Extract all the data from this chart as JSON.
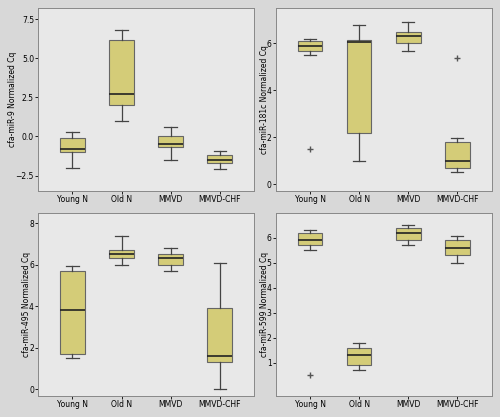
{
  "categories": [
    "Young N",
    "Old N",
    "MMVD",
    "MMVD-CHF"
  ],
  "fig_background": "#d8d8d8",
  "plot_background": "#e8e8e8",
  "box_color": "#d4cc78",
  "box_edge_color": "#666666",
  "median_color": "#222222",
  "whisker_color": "#444444",
  "flier_color": "#555555",
  "plots": [
    {
      "ylabel": "cfa-miR-9 Normalized Cq",
      "ylim": [
        -3.5,
        8.2
      ],
      "yticks": [
        -2.5,
        0.0,
        2.5,
        5.0,
        7.5
      ],
      "groups": {
        "Young N": {
          "q1": -1.0,
          "median": -0.8,
          "q3": -0.1,
          "whislo": -2.0,
          "whishi": 0.3,
          "fliers": []
        },
        "Old N": {
          "q1": 2.0,
          "median": 2.7,
          "q3": 6.2,
          "whislo": 1.0,
          "whishi": 6.8,
          "fliers": []
        },
        "MMVD": {
          "q1": -0.7,
          "median": -0.5,
          "q3": 0.0,
          "whislo": -1.5,
          "whishi": 0.6,
          "fliers": []
        },
        "MMVD-CHF": {
          "q1": -1.7,
          "median": -1.5,
          "q3": -1.2,
          "whislo": -2.1,
          "whishi": -0.9,
          "fliers": []
        }
      }
    },
    {
      "ylabel": "cfa-miR-181c Normalized Cq",
      "ylim": [
        -0.3,
        7.5
      ],
      "yticks": [
        0.0,
        2.0,
        4.0,
        6.0
      ],
      "groups": {
        "Young N": {
          "q1": 5.7,
          "median": 5.9,
          "q3": 6.1,
          "whislo": 5.5,
          "whishi": 6.2,
          "fliers": [
            1.5
          ]
        },
        "Old N": {
          "q1": 2.2,
          "median": 6.05,
          "q3": 6.15,
          "whislo": 1.0,
          "whishi": 6.8,
          "fliers": []
        },
        "MMVD": {
          "q1": 6.0,
          "median": 6.3,
          "q3": 6.5,
          "whislo": 5.7,
          "whishi": 6.9,
          "fliers": []
        },
        "MMVD-CHF": {
          "q1": 0.7,
          "median": 1.0,
          "q3": 1.8,
          "whislo": 0.5,
          "whishi": 1.95,
          "fliers": [
            5.4
          ]
        }
      }
    },
    {
      "ylabel": "cfa-miR-495 Normalized Cq",
      "ylim": [
        -0.3,
        8.5
      ],
      "yticks": [
        0.0,
        2.0,
        4.0,
        6.0,
        8.0
      ],
      "groups": {
        "Young N": {
          "q1": 1.7,
          "median": 3.8,
          "q3": 5.7,
          "whislo": 1.5,
          "whishi": 5.95,
          "fliers": []
        },
        "Old N": {
          "q1": 6.3,
          "median": 6.5,
          "q3": 6.7,
          "whislo": 6.0,
          "whishi": 7.4,
          "fliers": []
        },
        "MMVD": {
          "q1": 6.0,
          "median": 6.3,
          "q3": 6.5,
          "whislo": 5.7,
          "whishi": 6.8,
          "fliers": []
        },
        "MMVD-CHF": {
          "q1": 1.3,
          "median": 1.6,
          "q3": 3.9,
          "whislo": 0.0,
          "whishi": 6.1,
          "fliers": []
        }
      }
    },
    {
      "ylabel": "cfa-miR-599 Normalized Cq",
      "ylim": [
        -0.3,
        7.0
      ],
      "yticks": [
        1.0,
        2.0,
        3.0,
        4.0,
        5.0,
        6.0
      ],
      "groups": {
        "Young N": {
          "q1": 5.7,
          "median": 5.9,
          "q3": 6.2,
          "whislo": 5.5,
          "whishi": 6.3,
          "fliers": [
            0.5
          ]
        },
        "Old N": {
          "q1": 0.9,
          "median": 1.3,
          "q3": 1.6,
          "whislo": 0.7,
          "whishi": 1.8,
          "fliers": []
        },
        "MMVD": {
          "q1": 5.9,
          "median": 6.2,
          "q3": 6.4,
          "whislo": 5.7,
          "whishi": 6.5,
          "fliers": []
        },
        "MMVD-CHF": {
          "q1": 5.3,
          "median": 5.6,
          "q3": 5.9,
          "whislo": 5.0,
          "whishi": 6.05,
          "fliers": []
        }
      }
    }
  ]
}
